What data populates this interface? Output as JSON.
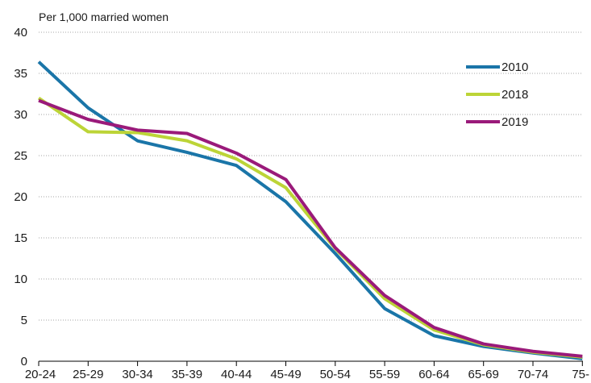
{
  "chart_data": {
    "type": "line",
    "ylabel": "Per 1,000 married women",
    "xlabel": "",
    "ylim": [
      0,
      40
    ],
    "yticks": [
      0,
      5,
      10,
      15,
      20,
      25,
      30,
      35,
      40
    ],
    "grid": true,
    "legend_position": "top-right",
    "categories": [
      "20-24",
      "25-29",
      "30-34",
      "35-39",
      "40-44",
      "45-49",
      "50-54",
      "55-59",
      "60-64",
      "65-69",
      "70-74",
      "75-"
    ],
    "series": [
      {
        "name": "2010",
        "color": "#1a75a8",
        "values": [
          36.4,
          30.8,
          26.8,
          25.4,
          23.8,
          19.4,
          13.1,
          6.4,
          3.1,
          1.8,
          1.0,
          0.3
        ]
      },
      {
        "name": "2018",
        "color": "#bcd437",
        "values": [
          32.0,
          27.9,
          27.8,
          26.8,
          24.6,
          21.1,
          13.7,
          7.6,
          3.8,
          2.0,
          1.1,
          0.5
        ]
      },
      {
        "name": "2019",
        "color": "#9a1a7a",
        "values": [
          31.7,
          29.4,
          28.1,
          27.7,
          25.3,
          22.1,
          13.8,
          8.0,
          4.1,
          2.1,
          1.2,
          0.6
        ]
      }
    ]
  }
}
